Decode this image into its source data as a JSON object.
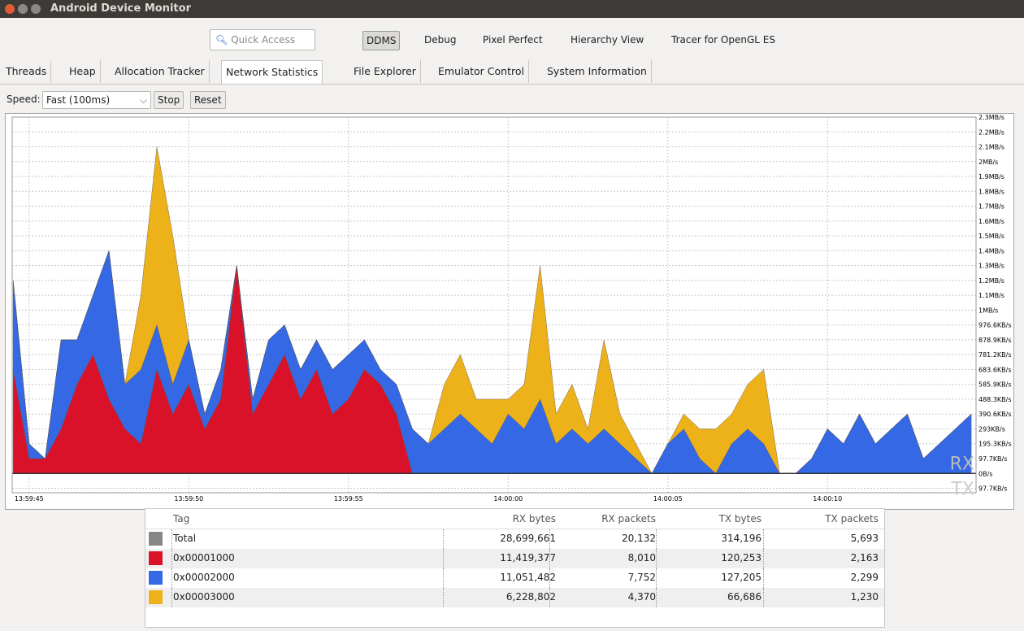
{
  "window": {
    "title": "Android Device Monitor"
  },
  "toolbar": {
    "quick_access": "Quick Access",
    "perspectives": [
      "DDMS",
      "Debug",
      "Pixel Perfect",
      "Hierarchy View",
      "Tracer for OpenGL ES"
    ]
  },
  "tabs": [
    "Threads",
    "Heap",
    "Allocation Tracker",
    "Network Statistics",
    "File Explorer",
    "Emulator Control",
    "System Information"
  ],
  "controls": {
    "speed_label": "Speed:",
    "speed": "Fast (100ms)",
    "stop": "Stop",
    "reset": "Reset"
  },
  "chart_data": {
    "type": "area",
    "stacked": true,
    "grid": true,
    "x": [
      -0.5,
      0,
      0.5,
      1,
      1.5,
      2,
      2.5,
      3,
      3.5,
      4,
      4.5,
      5,
      5.5,
      6,
      6.5,
      7,
      7.5,
      8,
      8.5,
      9,
      9.5,
      10,
      10.5,
      11,
      11.5,
      12,
      12.5,
      13,
      13.5,
      14,
      14.5,
      15,
      15.5,
      16,
      16.5,
      17,
      17.5,
      18,
      18.5,
      19,
      19.5,
      20,
      20.5,
      21,
      21.5,
      22,
      22.5,
      23,
      23.5,
      24,
      24.5,
      25,
      25.5,
      26,
      26.5,
      27,
      27.5,
      28,
      28.5,
      29,
      29.5
    ],
    "xlim": [
      -0.53,
      29.65
    ],
    "xticks": [
      {
        "value": 0,
        "label": "13:59:45"
      },
      {
        "value": 5,
        "label": "13:59:50"
      },
      {
        "value": 10,
        "label": "13:59:55"
      },
      {
        "value": 15,
        "label": "14:00:00"
      },
      {
        "value": 20,
        "label": "14:00:05"
      },
      {
        "value": 25,
        "label": "14:00:10"
      }
    ],
    "ylim": [
      -130000,
      2400000
    ],
    "yticks": [
      {
        "value": -100000,
        "label": "97.7KB/s"
      },
      {
        "value": 0,
        "label": "0B/s"
      },
      {
        "value": 100000,
        "label": "97.7KB/s"
      },
      {
        "value": 200000,
        "label": "195.3KB/s"
      },
      {
        "value": 300000,
        "label": "293KB/s"
      },
      {
        "value": 400000,
        "label": "390.6KB/s"
      },
      {
        "value": 500000,
        "label": "488.3KB/s"
      },
      {
        "value": 600000,
        "label": "585.9KB/s"
      },
      {
        "value": 700000,
        "label": "683.6KB/s"
      },
      {
        "value": 800000,
        "label": "781.2KB/s"
      },
      {
        "value": 900000,
        "label": "878.9KB/s"
      },
      {
        "value": 1000000,
        "label": "976.6KB/s"
      },
      {
        "value": 1100000,
        "label": "1MB/s"
      },
      {
        "value": 1200000,
        "label": "1.1MB/s"
      },
      {
        "value": 1300000,
        "label": "1.2MB/s"
      },
      {
        "value": 1400000,
        "label": "1.3MB/s"
      },
      {
        "value": 1500000,
        "label": "1.4MB/s"
      },
      {
        "value": 1600000,
        "label": "1.5MB/s"
      },
      {
        "value": 1700000,
        "label": "1.6MB/s"
      },
      {
        "value": 1800000,
        "label": "1.7MB/s"
      },
      {
        "value": 1900000,
        "label": "1.8MB/s"
      },
      {
        "value": 2000000,
        "label": "1.9MB/s"
      },
      {
        "value": 2100000,
        "label": "2MB/s"
      },
      {
        "value": 2200000,
        "label": "2.1MB/s"
      },
      {
        "value": 2300000,
        "label": "2.2MB/s"
      },
      {
        "value": 2400000,
        "label": "2.3MB/s"
      }
    ],
    "rx_label": "RX",
    "tx_label": "TX",
    "series": [
      {
        "name": "0x00001000",
        "color": "#d9122a",
        "values": [
          700000,
          100000,
          100000,
          300000,
          600000,
          800000,
          500000,
          300000,
          200000,
          700000,
          400000,
          600000,
          300000,
          500000,
          1400000,
          400000,
          600000,
          800000,
          500000,
          700000,
          400000,
          500000,
          700000,
          600000,
          400000,
          0,
          0,
          0,
          0,
          0,
          0,
          0,
          0,
          0,
          0,
          0,
          0,
          0,
          0,
          0,
          0,
          0,
          0,
          0,
          0,
          0,
          0,
          0,
          0,
          0,
          0,
          0,
          0,
          0,
          0,
          0,
          0,
          0,
          0,
          0,
          0
        ]
      },
      {
        "name": "0x00002000",
        "color": "#3568e4",
        "values": [
          600000,
          100000,
          0,
          600000,
          300000,
          400000,
          1000000,
          300000,
          500000,
          300000,
          200000,
          300000,
          100000,
          200000,
          0,
          100000,
          300000,
          200000,
          200000,
          200000,
          300000,
          300000,
          200000,
          100000,
          200000,
          300000,
          200000,
          300000,
          400000,
          300000,
          200000,
          400000,
          300000,
          500000,
          200000,
          300000,
          200000,
          300000,
          200000,
          100000,
          0,
          200000,
          300000,
          100000,
          0,
          200000,
          300000,
          200000,
          0,
          0,
          100000,
          300000,
          200000,
          400000,
          200000,
          300000,
          400000,
          100000,
          200000,
          300000,
          400000
        ]
      },
      {
        "name": "0x00003000",
        "color": "#edb11a",
        "values": [
          0,
          0,
          0,
          0,
          0,
          0,
          0,
          0,
          500000,
          1200000,
          1000000,
          0,
          0,
          0,
          0,
          0,
          0,
          0,
          0,
          0,
          0,
          0,
          0,
          0,
          0,
          0,
          0,
          300000,
          400000,
          200000,
          300000,
          100000,
          300000,
          900000,
          200000,
          300000,
          100000,
          600000,
          200000,
          100000,
          0,
          0,
          100000,
          200000,
          300000,
          200000,
          300000,
          500000,
          0,
          0,
          0,
          0,
          0,
          0,
          0,
          0,
          0,
          0,
          0,
          0,
          0
        ]
      }
    ]
  },
  "table": {
    "columns": [
      "Tag",
      "RX bytes",
      "RX packets",
      "TX bytes",
      "TX packets"
    ],
    "swatch_colors": [
      "#878787",
      "#d9122a",
      "#3568e4",
      "#edb11a"
    ],
    "rows": [
      [
        "Total",
        "28,699,661",
        "20,132",
        "314,196",
        "5,693"
      ],
      [
        "0x00001000",
        "11,419,377",
        "8,010",
        "120,253",
        "2,163"
      ],
      [
        "0x00002000",
        "11,051,482",
        "7,752",
        "127,205",
        "2,299"
      ],
      [
        "0x00003000",
        "6,228,802",
        "4,370",
        "66,686",
        "1,230"
      ]
    ]
  }
}
